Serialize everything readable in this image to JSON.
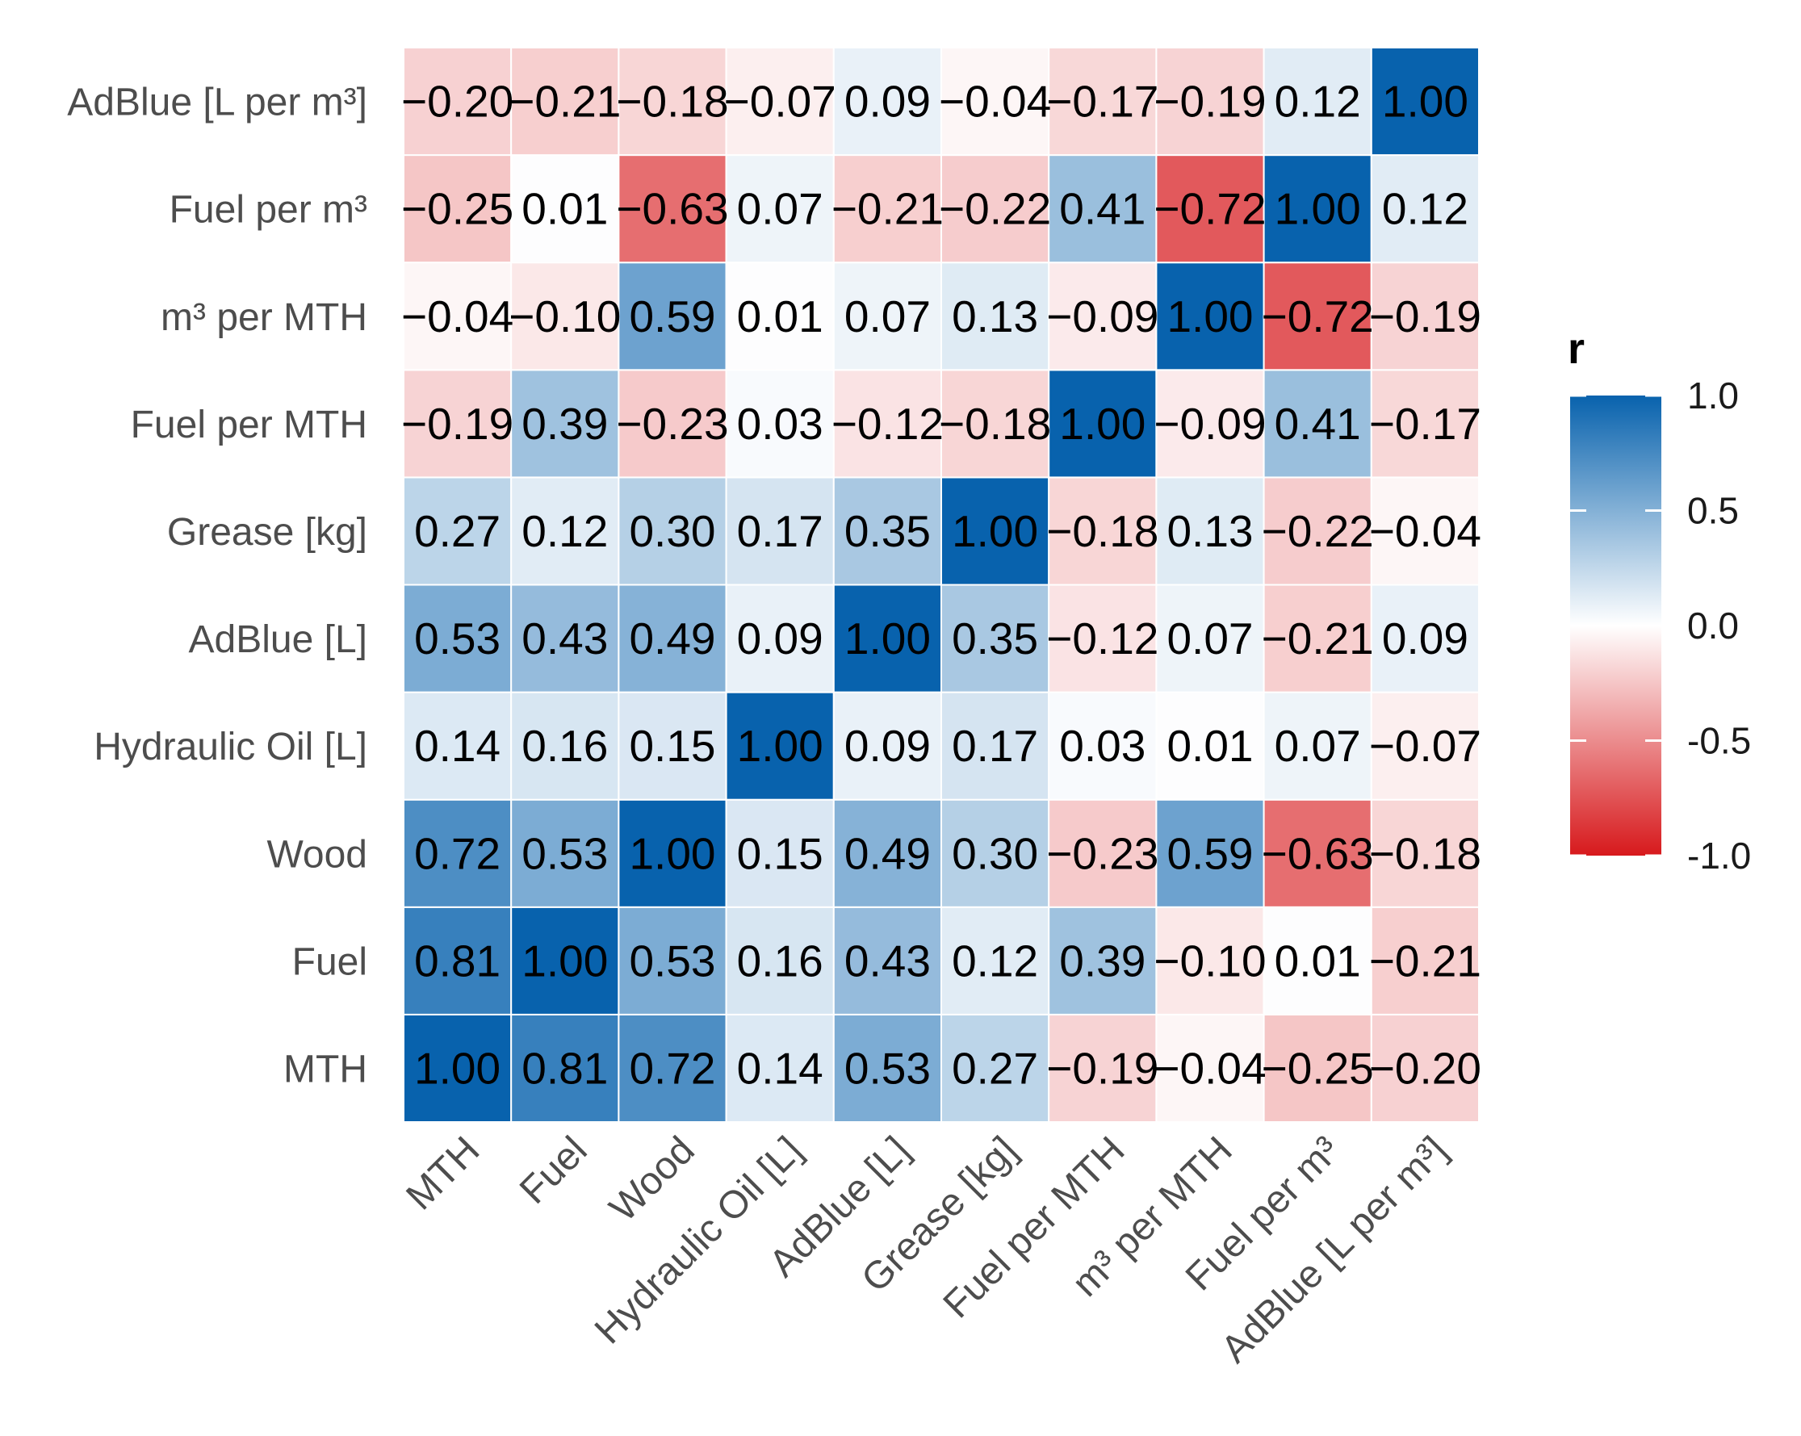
{
  "chart_data": {
    "type": "heatmap",
    "title": "",
    "xlabel": "",
    "ylabel": "",
    "variables": [
      "MTH",
      "Fuel",
      "Wood",
      "Hydraulic Oil [L]",
      "AdBlue [L]",
      "Grease [kg]",
      "Fuel per MTH",
      "m³ per MTH",
      "Fuel per m³",
      "AdBlue [L per m³]"
    ],
    "x_tick_labels": [
      "MTH",
      "Fuel",
      "Wood",
      "Hydraulic Oil [L]",
      "AdBlue [L]",
      "Grease [kg]",
      "Fuel per MTH",
      "m³ per MTH",
      "Fuel per m³",
      "AdBlue [L per m³]"
    ],
    "y_tick_labels": [
      "MTH",
      "Fuel",
      "Wood",
      "Hydraulic Oil [L]",
      "AdBlue [L]",
      "Grease [kg]",
      "Fuel per MTH",
      "m³ per MTH",
      "Fuel per m³",
      "AdBlue [L per m³]"
    ],
    "matrix": [
      [
        1.0,
        0.81,
        0.72,
        0.14,
        0.53,
        0.27,
        -0.19,
        -0.04,
        -0.25,
        -0.2
      ],
      [
        0.81,
        1.0,
        0.53,
        0.16,
        0.43,
        0.12,
        0.39,
        -0.1,
        0.01,
        -0.21
      ],
      [
        0.72,
        0.53,
        1.0,
        0.15,
        0.49,
        0.3,
        -0.23,
        0.59,
        -0.63,
        -0.18
      ],
      [
        0.14,
        0.16,
        0.15,
        1.0,
        0.09,
        0.17,
        0.03,
        0.01,
        0.07,
        -0.07
      ],
      [
        0.53,
        0.43,
        0.49,
        0.09,
        1.0,
        0.35,
        -0.12,
        0.07,
        -0.21,
        0.09
      ],
      [
        0.27,
        0.12,
        0.3,
        0.17,
        0.35,
        1.0,
        -0.18,
        0.13,
        -0.22,
        -0.04
      ],
      [
        -0.19,
        0.39,
        -0.23,
        0.03,
        -0.12,
        -0.18,
        1.0,
        -0.09,
        0.41,
        -0.17
      ],
      [
        -0.04,
        -0.1,
        0.59,
        0.01,
        0.07,
        0.13,
        -0.09,
        1.0,
        -0.72,
        -0.19
      ],
      [
        -0.25,
        0.01,
        -0.63,
        0.07,
        -0.21,
        -0.22,
        0.41,
        -0.72,
        1.0,
        0.12
      ],
      [
        -0.2,
        -0.21,
        -0.18,
        -0.07,
        0.09,
        -0.04,
        -0.17,
        -0.19,
        0.12,
        1.0
      ]
    ],
    "value_range": [
      -1.0,
      1.0
    ],
    "legend": {
      "title": "r",
      "ticks": [
        "1.0",
        "0.5",
        "0.0",
        "-0.5",
        "-1.0"
      ],
      "tick_values": [
        1.0,
        0.5,
        0.0,
        -0.5,
        -1.0
      ],
      "position": "right"
    },
    "colors": {
      "negative": "#d7191c",
      "neutral": "#ffffff",
      "positive": "#0862ad",
      "grid": "#ffffff",
      "cell_text": "#000000",
      "axis_text": "#4d4d4d"
    }
  }
}
